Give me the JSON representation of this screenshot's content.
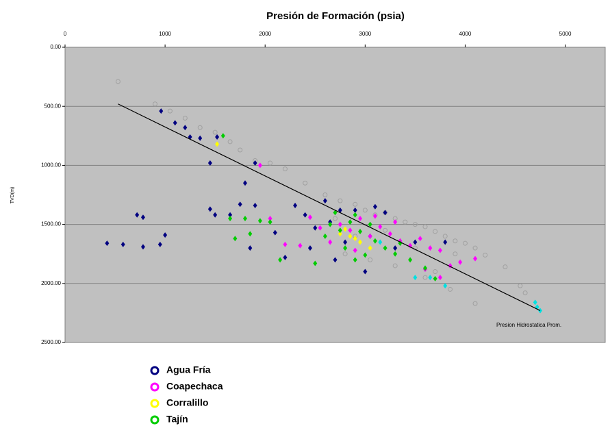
{
  "chart_data": {
    "type": "scatter",
    "title": "Presión de Formación (psia)",
    "y_label": "TVD(m)",
    "xlim": [
      0,
      5400
    ],
    "xticks": [
      0,
      1000,
      2000,
      3000,
      4000,
      5000
    ],
    "x_axis_position": "top",
    "ylim": [
      0,
      2500
    ],
    "y_inverted": true,
    "yticks": [
      {
        "value": 0,
        "label": "0.00"
      },
      {
        "value": 500,
        "label": "500.00"
      },
      {
        "value": 1000,
        "label": "1000.00"
      },
      {
        "value": 1500,
        "label": "1500.00"
      },
      {
        "value": 2000,
        "label": "2000.00"
      },
      {
        "value": 2500,
        "label": "2500.00"
      }
    ],
    "grid": true,
    "background": "#c0c0c0",
    "legend": "bottom-left",
    "series": [
      {
        "color": "#a0a0a0",
        "marker": "open-circle",
        "x": [
          530,
          900,
          1050,
          1200,
          1350,
          1500,
          1650,
          1750,
          1900,
          2050,
          2200,
          2400,
          2600,
          2750,
          2900,
          3000,
          3100,
          3200,
          3300,
          3400,
          3500,
          3600,
          3700,
          3800,
          3900,
          4000,
          4100,
          4200,
          4400,
          4550,
          4100,
          3850,
          3600,
          3300,
          3050,
          2800,
          3500,
          3900,
          3200,
          2900,
          2700,
          3700,
          4600
        ],
        "y": [
          290,
          480,
          540,
          600,
          680,
          720,
          800,
          870,
          960,
          980,
          1030,
          1150,
          1250,
          1300,
          1330,
          1380,
          1420,
          1400,
          1450,
          1480,
          1500,
          1520,
          1560,
          1600,
          1640,
          1660,
          1700,
          1760,
          1860,
          2020,
          2170,
          2050,
          1950,
          1850,
          1800,
          1750,
          1700,
          1750,
          1550,
          1600,
          1450,
          1900,
          2080
        ]
      },
      {
        "name": "Agua Fría",
        "color": "#000080",
        "marker": "diamond",
        "x": [
          420,
          580,
          780,
          950,
          1000,
          720,
          780,
          960,
          1100,
          1200,
          1250,
          1350,
          1450,
          1520,
          1450,
          1500,
          1650,
          1750,
          1800,
          1850,
          1900,
          1900,
          2100,
          2200,
          2300,
          2400,
          2500,
          2600,
          2650,
          2750,
          2800,
          2900,
          3000,
          3050,
          3100,
          3200,
          3300,
          3500,
          3800,
          2450,
          2700
        ],
        "y": [
          1660,
          1670,
          1690,
          1670,
          1590,
          1420,
          1440,
          540,
          640,
          680,
          760,
          770,
          980,
          760,
          1370,
          1420,
          1420,
          1330,
          1150,
          1700,
          980,
          1340,
          1570,
          1780,
          1340,
          1420,
          1530,
          1300,
          1480,
          1380,
          1650,
          1380,
          1900,
          1600,
          1350,
          1400,
          1700,
          1650,
          1650,
          1700,
          1800
        ]
      },
      {
        "name": "Coapechaca",
        "color": "#ff00ff",
        "marker": "diamond",
        "x": [
          1950,
          2050,
          2200,
          2350,
          2450,
          2550,
          2650,
          2750,
          2850,
          2950,
          3050,
          3150,
          3250,
          3350,
          3450,
          3550,
          3650,
          3750,
          3850,
          3950,
          4100,
          3600,
          3750,
          3300,
          3100,
          2900
        ],
        "y": [
          1000,
          1450,
          1670,
          1680,
          1440,
          1530,
          1650,
          1500,
          1550,
          1450,
          1600,
          1520,
          1580,
          1640,
          1680,
          1620,
          1700,
          1720,
          1850,
          1820,
          1790,
          1880,
          1950,
          1480,
          1430,
          1720
        ]
      },
      {
        "name": "Corralillo",
        "color": "#ffff00",
        "marker": "diamond",
        "x": [
          1520,
          2750,
          2850,
          2900,
          2950,
          3050,
          2800
        ],
        "y": [
          820,
          1580,
          1600,
          1620,
          1650,
          1700,
          1540
        ]
      },
      {
        "name": "Tajín",
        "color": "#00cc00",
        "marker": "diamond",
        "x": [
          1580,
          1650,
          1700,
          1800,
          1850,
          1950,
          2050,
          2150,
          2500,
          2600,
          2650,
          2700,
          2750,
          2800,
          2850,
          2900,
          2950,
          3000,
          3050,
          3100,
          3200,
          3300,
          3350,
          3450,
          3600,
          3700,
          2900
        ],
        "y": [
          750,
          1450,
          1620,
          1450,
          1580,
          1470,
          1480,
          1800,
          1830,
          1600,
          1500,
          1400,
          1550,
          1700,
          1480,
          1420,
          1560,
          1760,
          1500,
          1640,
          1700,
          1750,
          1660,
          1800,
          1870,
          1960,
          1800
        ]
      },
      {
        "color": "#00e0e0",
        "marker": "diamond",
        "x": [
          3150,
          3500,
          3650,
          3800,
          4700,
          4750,
          4720
        ],
        "y": [
          1650,
          1950,
          1950,
          2020,
          2160,
          2230,
          2200
        ]
      }
    ],
    "line": {
      "x": [
        530,
        4750
      ],
      "y": [
        480,
        2230
      ],
      "color": "#000000"
    },
    "annotation": "Presion Hidrostatica Prom."
  }
}
